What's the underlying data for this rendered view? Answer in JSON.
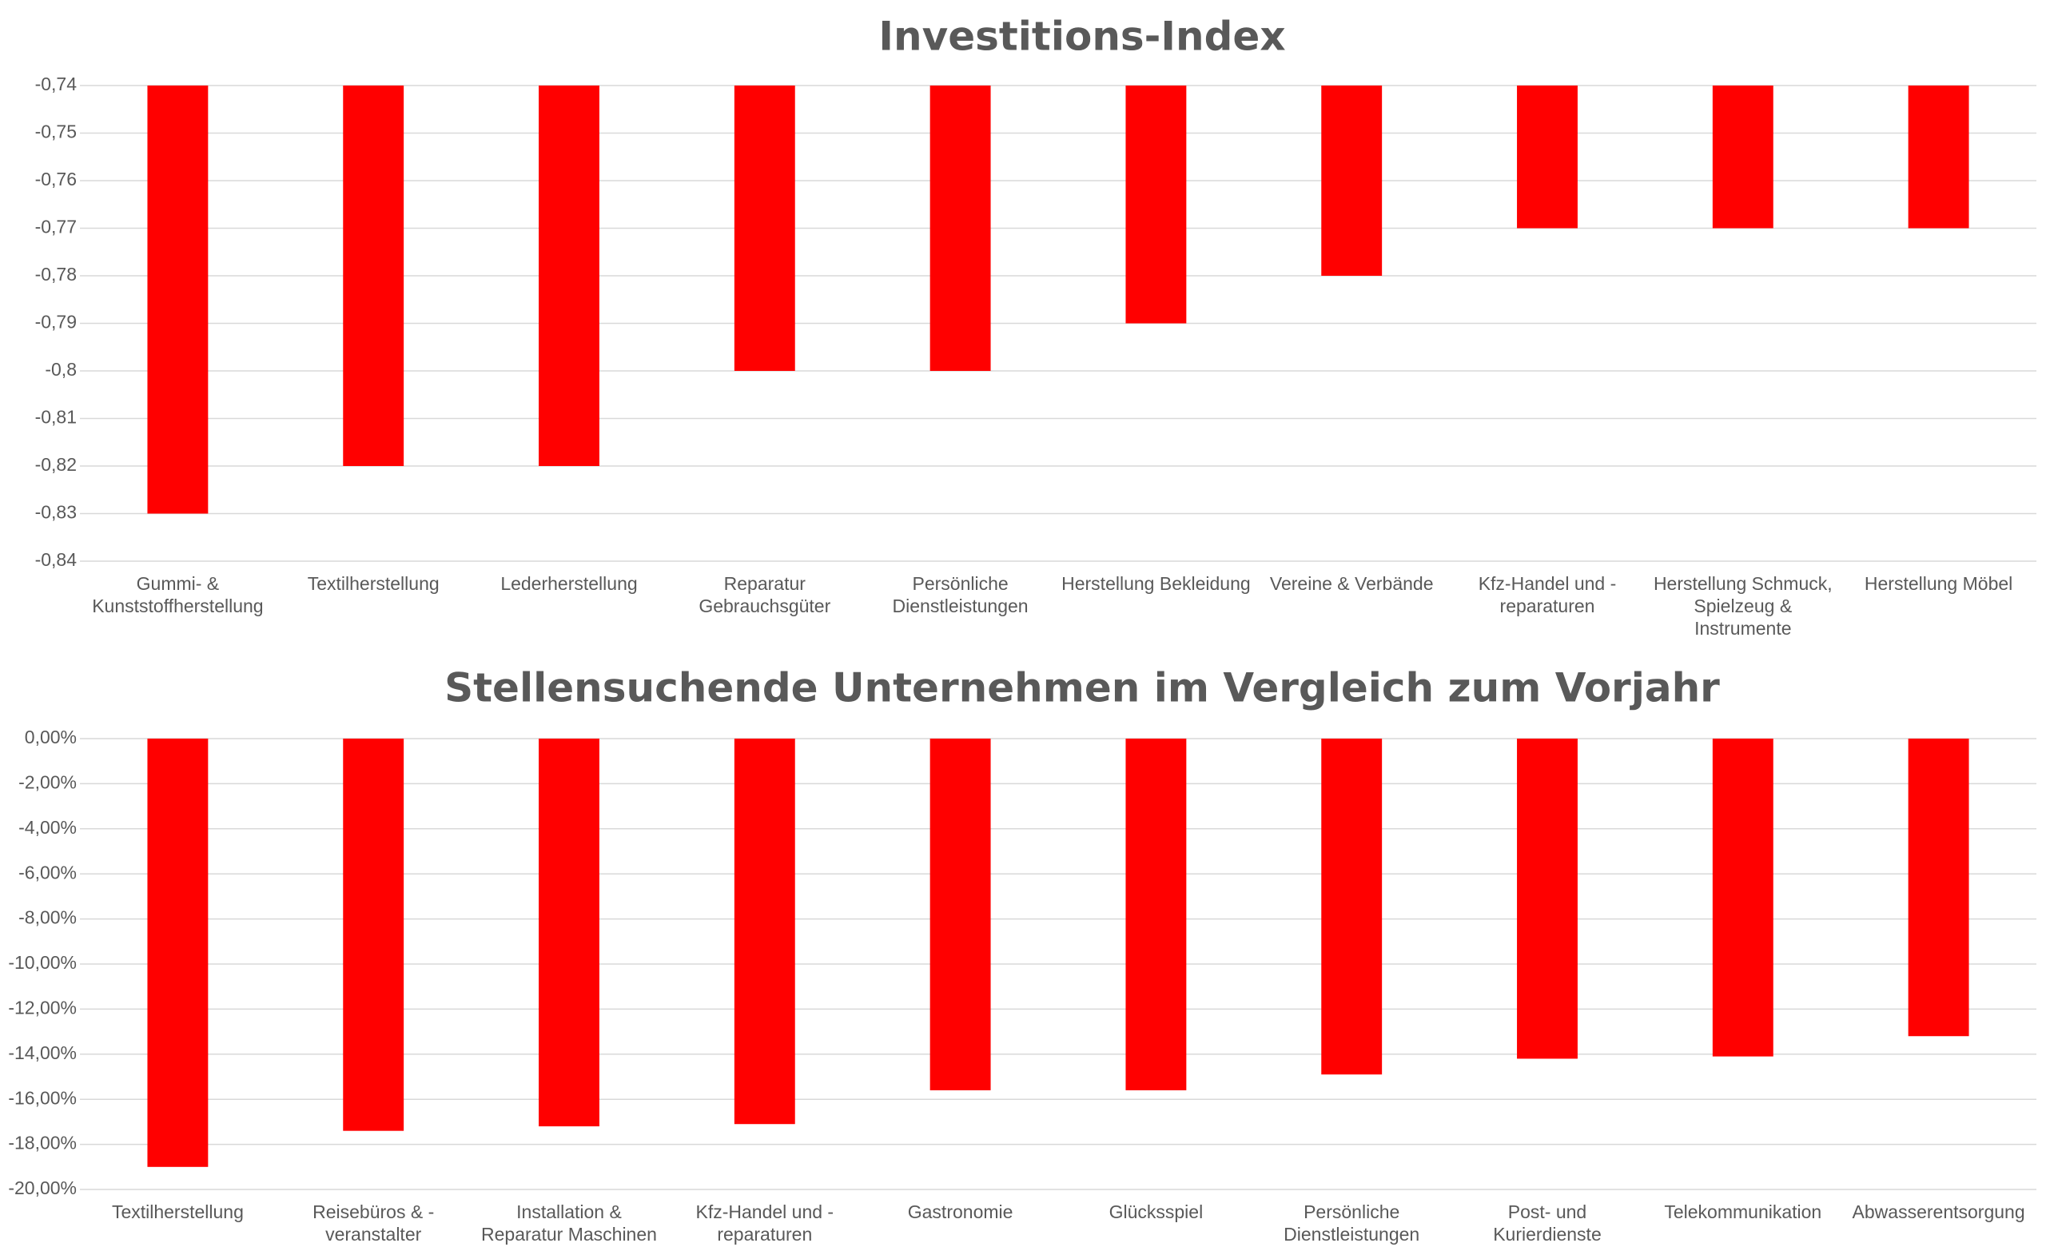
{
  "chart_data": [
    {
      "type": "bar",
      "title": "Investitions-Index",
      "categories": [
        "Gummi- & Kunststoffherstellung",
        "Textilherstellung",
        "Lederherstellung",
        "Reparatur Gebrauchsgüter",
        "Persönliche Dienstleistungen",
        "Herstellung Bekleidung",
        "Vereine & Verbände",
        "Kfz-Handel und -reparaturen",
        "Herstellung Schmuck, Spielzeug & Instrumente",
        "Herstellung Möbel"
      ],
      "values": [
        -0.83,
        -0.82,
        -0.82,
        -0.8,
        -0.8,
        -0.79,
        -0.78,
        -0.77,
        -0.77,
        -0.77
      ],
      "color": "#ff0000",
      "ylim": [
        -0.84,
        -0.74
      ],
      "yticks": [
        {
          "value": -0.84,
          "label": "-0,84"
        },
        {
          "value": -0.83,
          "label": "-0,83"
        },
        {
          "value": -0.82,
          "label": "-0,82"
        },
        {
          "value": -0.81,
          "label": "-0,81"
        },
        {
          "value": -0.8,
          "label": "-0,8"
        },
        {
          "value": -0.79,
          "label": "-0,79"
        },
        {
          "value": -0.78,
          "label": "-0,78"
        },
        {
          "value": -0.77,
          "label": "-0,77"
        },
        {
          "value": -0.76,
          "label": "-0,76"
        },
        {
          "value": -0.75,
          "label": "-0,75"
        },
        {
          "value": -0.74,
          "label": "-0,74"
        }
      ],
      "grid": true
    },
    {
      "type": "bar",
      "title": "Stellensuchende Unternehmen im Vergleich zum Vorjahr",
      "categories": [
        "Textilherstellung",
        "Reisebüros & -veranstalter",
        "Installation & Reparatur Maschinen",
        "Kfz-Handel und -reparaturen",
        "Gastronomie",
        "Glücksspiel",
        "Persönliche Dienstleistungen",
        "Post- und Kurierdienste",
        "Telekommunikation",
        "Abwasserentsorgung"
      ],
      "values": [
        -19.0,
        -17.4,
        -17.2,
        -17.1,
        -15.6,
        -15.6,
        -14.9,
        -14.2,
        -14.1,
        -13.2
      ],
      "color": "#ff0000",
      "ylim": [
        -20,
        0
      ],
      "yticks": [
        {
          "value": -20,
          "label": "-20,00%"
        },
        {
          "value": -18,
          "label": "-18,00%"
        },
        {
          "value": -16,
          "label": "-16,00%"
        },
        {
          "value": -14,
          "label": "-14,00%"
        },
        {
          "value": -12,
          "label": "-12,00%"
        },
        {
          "value": -10,
          "label": "-10,00%"
        },
        {
          "value": -8,
          "label": "-8,00%"
        },
        {
          "value": -6,
          "label": "-6,00%"
        },
        {
          "value": -4,
          "label": "-4,00%"
        },
        {
          "value": -2,
          "label": "-2,00%"
        },
        {
          "value": 0,
          "label": "0,00%"
        }
      ],
      "grid": true
    }
  ]
}
